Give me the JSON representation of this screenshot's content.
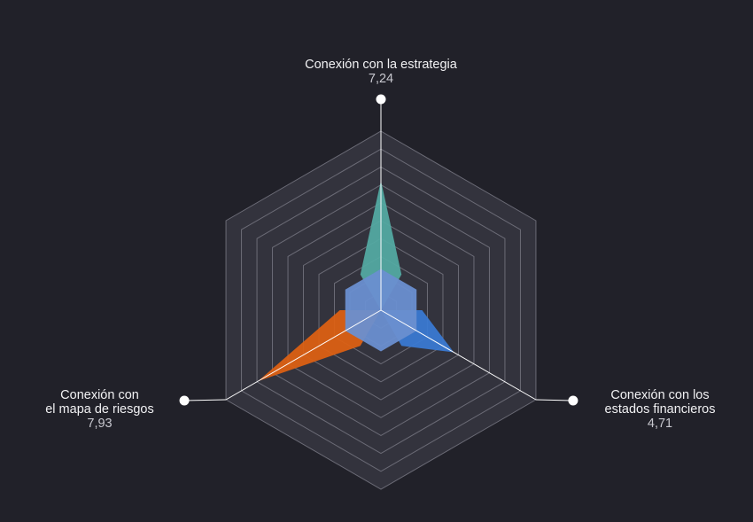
{
  "chart_data": {
    "type": "radar",
    "scale_max": 10,
    "rings": 10,
    "axes": [
      {
        "key": "strategy",
        "label_lines": [
          "Conexión con la estrategia"
        ],
        "value_label": "7,24",
        "value": 7.24,
        "color": "#54aba4"
      },
      {
        "key": "financial",
        "label_lines": [
          "Conexión con los",
          "estados financieros"
        ],
        "value_label": "4,71",
        "value": 4.71,
        "color": "#3a7bd5"
      },
      {
        "key": "risk",
        "label_lines": [
          "Conexión con",
          "el mapa de riesgos"
        ],
        "value_label": "7,93",
        "value": 7.93,
        "color": "#e06111"
      }
    ],
    "inner_hexagon_value": 2.3,
    "colors": {
      "background": "#212129",
      "grid_fill": "#33333d",
      "grid_line": "#6b6b76",
      "axis_line": "#ffffff",
      "inner_fill": "#6a8fd0"
    }
  }
}
